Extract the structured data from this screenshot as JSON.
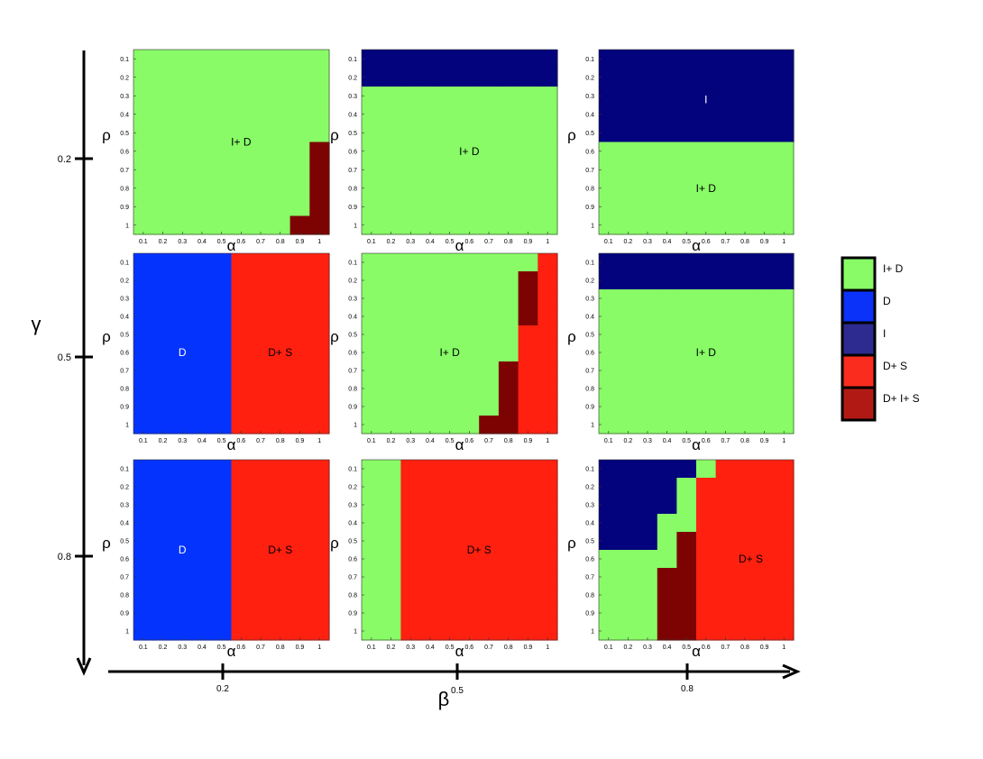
{
  "chart_data": {
    "type": "heatmap",
    "outer_axes": {
      "y_label": "γ",
      "y_ticks": [
        "0.2",
        "0.5",
        "0.8"
      ],
      "x_label": "β",
      "x_ticks": [
        "0.2",
        "0.5",
        "0.8"
      ]
    },
    "panel_axes": {
      "xlabel": "α",
      "ylabel": "ρ",
      "x_ticks": [
        "0.1",
        "0.2",
        "0.3",
        "0.4",
        "0.5",
        "0.6",
        "0.7",
        "0.8",
        "0.9",
        "1"
      ],
      "y_ticks": [
        "0.1",
        "0.2",
        "0.3",
        "0.4",
        "0.5",
        "0.6",
        "0.7",
        "0.8",
        "0.9",
        "1"
      ]
    },
    "legend": [
      {
        "label": "I+ D",
        "key": "ID",
        "color": "#88fb67"
      },
      {
        "label": "D",
        "key": "D",
        "color": "#0a32f9"
      },
      {
        "label": "I",
        "key": "I",
        "color": "#2d2b8f"
      },
      {
        "label": "D+ S",
        "key": "DS",
        "color": "#fa2c1e"
      },
      {
        "label": "D+ I+ S",
        "key": "DIS",
        "color": "#b11a14"
      }
    ],
    "cell_colors": {
      "ID": "#88fb67",
      "D": "#0533fe",
      "I": "#03037d",
      "DS": "#ff2010",
      "DIS": "#7d0303"
    },
    "panels": [
      {
        "gamma": "0.2",
        "beta": "0.2",
        "grid": [
          "ID ID ID ID ID ID ID ID ID ID",
          "ID ID ID ID ID ID ID ID ID ID",
          "ID ID ID ID ID ID ID ID ID ID",
          "ID ID ID ID ID ID ID ID ID ID",
          "ID ID ID ID ID ID ID ID ID ID",
          "ID ID ID ID ID ID ID ID ID DIS",
          "ID ID ID ID ID ID ID ID ID DIS",
          "ID ID ID ID ID ID ID ID ID DIS",
          "ID ID ID ID ID ID ID ID ID DIS",
          "ID ID ID ID ID ID ID ID DIS DIS"
        ],
        "labels": [
          {
            "text": "I+ D",
            "a": 0.55,
            "r": 0.5
          }
        ]
      },
      {
        "gamma": "0.2",
        "beta": "0.5",
        "grid": [
          "I I I I I I I I I I",
          "I I I I I I I I I I",
          "ID ID ID ID ID ID ID ID ID ID",
          "ID ID ID ID ID ID ID ID ID ID",
          "ID ID ID ID ID ID ID ID ID ID",
          "ID ID ID ID ID ID ID ID ID ID",
          "ID ID ID ID ID ID ID ID ID ID",
          "ID ID ID ID ID ID ID ID ID ID",
          "ID ID ID ID ID ID ID ID ID ID",
          "ID ID ID ID ID ID ID ID ID ID"
        ],
        "labels": [
          {
            "text": "I+ D",
            "a": 0.55,
            "r": 0.55
          }
        ]
      },
      {
        "gamma": "0.2",
        "beta": "0.8",
        "grid": [
          "I I I I I I I I I I",
          "I I I I I I I I I I",
          "I I I I I I I I I I",
          "I I I I I I I I I I",
          "I I I I I I I I I I",
          "ID ID ID ID ID ID ID ID ID ID",
          "ID ID ID ID ID ID ID ID ID ID",
          "ID ID ID ID ID ID ID ID ID ID",
          "ID ID ID ID ID ID ID ID ID ID",
          "ID ID ID ID ID ID ID ID ID ID"
        ],
        "labels": [
          {
            "text": "I",
            "a": 0.55,
            "r": 0.27
          },
          {
            "text": "I+ D",
            "a": 0.55,
            "r": 0.75
          }
        ]
      },
      {
        "gamma": "0.5",
        "beta": "0.2",
        "grid": [
          "D D D D D DS DS DS DS DS",
          "D D D D D DS DS DS DS DS",
          "D D D D D DS DS DS DS DS",
          "D D D D D DS DS DS DS DS",
          "D D D D D DS DS DS DS DS",
          "D D D D D DS DS DS DS DS",
          "D D D D D DS DS DS DS DS",
          "D D D D D DS DS DS DS DS",
          "D D D D D DS DS DS DS DS",
          "D D D D D DS DS DS DS DS"
        ],
        "labels": [
          {
            "text": "D",
            "a": 0.25,
            "r": 0.55
          },
          {
            "text": "D+ S",
            "a": 0.75,
            "r": 0.55
          }
        ]
      },
      {
        "gamma": "0.5",
        "beta": "0.5",
        "grid": [
          "ID ID ID ID ID ID ID ID ID DS",
          "ID ID ID ID ID ID ID ID DIS DS",
          "ID ID ID ID ID ID ID ID DIS DS",
          "ID ID ID ID ID ID ID ID DIS DS",
          "ID ID ID ID ID ID ID ID DS DS",
          "ID ID ID ID ID ID ID ID DS DS",
          "ID ID ID ID ID ID ID DIS DS DS",
          "ID ID ID ID ID ID ID DIS DS DS",
          "ID ID ID ID ID ID ID DIS DS DS",
          "ID ID ID ID ID ID DIS DIS DS DS"
        ],
        "labels": [
          {
            "text": "I+ D",
            "a": 0.45,
            "r": 0.55
          }
        ]
      },
      {
        "gamma": "0.5",
        "beta": "0.8",
        "grid": [
          "I I I I I I I I I I",
          "I I I I I I I I I I",
          "ID ID ID ID ID ID ID ID ID ID",
          "ID ID ID ID ID ID ID ID ID ID",
          "ID ID ID ID ID ID ID ID ID ID",
          "ID ID ID ID ID ID ID ID ID ID",
          "ID ID ID ID ID ID ID ID ID ID",
          "ID ID ID ID ID ID ID ID ID ID",
          "ID ID ID ID ID ID ID ID ID ID",
          "ID ID ID ID ID ID ID ID ID ID"
        ],
        "labels": [
          {
            "text": "I+ D",
            "a": 0.55,
            "r": 0.55
          }
        ]
      },
      {
        "gamma": "0.8",
        "beta": "0.2",
        "grid": [
          "D D D D D DS DS DS DS DS",
          "D D D D D DS DS DS DS DS",
          "D D D D D DS DS DS DS DS",
          "D D D D D DS DS DS DS DS",
          "D D D D D DS DS DS DS DS",
          "D D D D D DS DS DS DS DS",
          "D D D D D DS DS DS DS DS",
          "D D D D D DS DS DS DS DS",
          "D D D D D DS DS DS DS DS",
          "D D D D D DS DS DS DS DS"
        ],
        "labels": [
          {
            "text": "D",
            "a": 0.25,
            "r": 0.5
          },
          {
            "text": "D+ S",
            "a": 0.75,
            "r": 0.5
          }
        ]
      },
      {
        "gamma": "0.8",
        "beta": "0.5",
        "grid": [
          "ID ID DS DS DS DS DS DS DS DS",
          "ID ID DS DS DS DS DS DS DS DS",
          "ID ID DS DS DS DS DS DS DS DS",
          "ID ID DS DS DS DS DS DS DS DS",
          "ID ID DS DS DS DS DS DS DS DS",
          "ID ID DS DS DS DS DS DS DS DS",
          "ID ID DS DS DS DS DS DS DS DS",
          "ID ID DS DS DS DS DS DS DS DS",
          "ID ID DS DS DS DS DS DS DS DS",
          "ID ID DS DS DS DS DS DS DS DS"
        ],
        "labels": [
          {
            "text": "D+ S",
            "a": 0.6,
            "r": 0.5
          }
        ]
      },
      {
        "gamma": "0.8",
        "beta": "0.8",
        "grid": [
          "I I I I I ID DS DS DS DS",
          "I I I I ID DS DS DS DS DS",
          "I I I I ID DS DS DS DS DS",
          "I I I ID ID DS DS DS DS DS",
          "I I I ID DIS DS DS DS DS DS",
          "ID ID ID ID DIS DS DS DS DS DS",
          "ID ID ID DIS DIS DS DS DS DS DS",
          "ID ID ID DIS DIS DS DS DS DS DS",
          "ID ID ID DIS DIS DS DS DS DS DS",
          "ID ID ID DIS DIS DS DS DS DS DS"
        ],
        "labels": [
          {
            "text": "D+ S",
            "a": 0.78,
            "r": 0.55
          }
        ]
      }
    ]
  }
}
